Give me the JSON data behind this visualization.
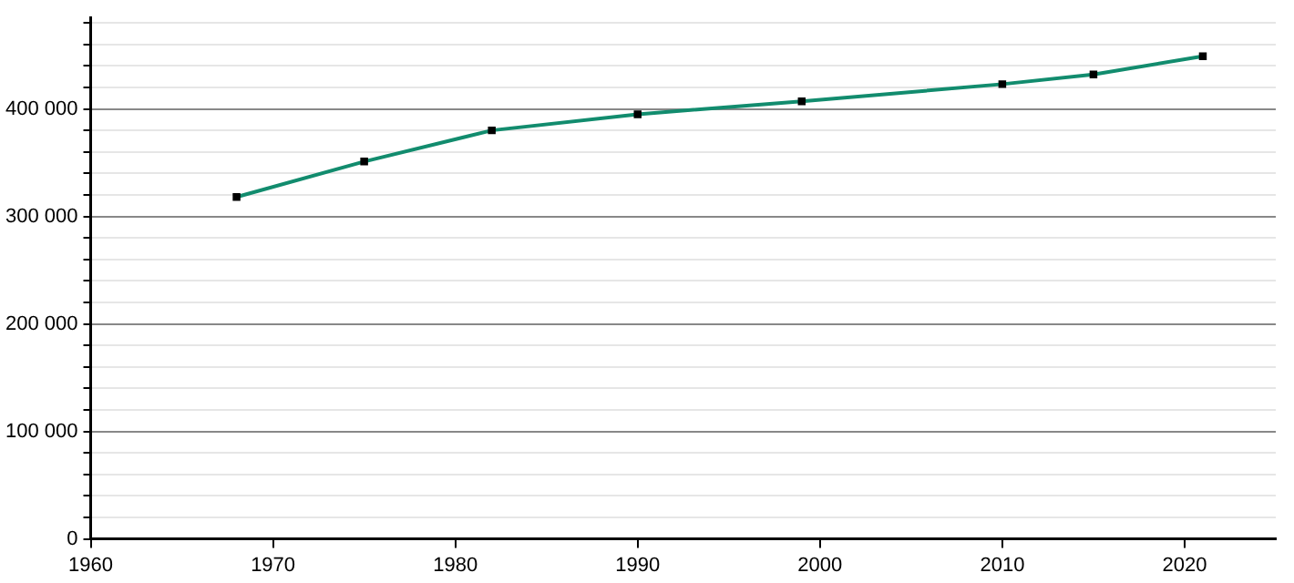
{
  "chart_data": {
    "type": "line",
    "x": [
      1968,
      1975,
      1982,
      1990,
      1999,
      2010,
      2015,
      2021
    ],
    "series": [
      {
        "color": "#128c6e",
        "values": [
          318000,
          351000,
          380000,
          395000,
          407000,
          423000,
          432000,
          449000
        ]
      }
    ],
    "xlim": [
      1960,
      2025
    ],
    "xticks": [
      1960,
      1970,
      1980,
      1990,
      2000,
      2010,
      2020
    ],
    "ylim": [
      0,
      485000
    ],
    "yticks": [
      0,
      {
        "value": 20000,
        "label": null
      },
      {
        "value": 40000,
        "label": null
      },
      {
        "value": 60000,
        "label": null
      },
      {
        "value": 80000,
        "label": null
      },
      {
        "value": 100000,
        "label": "100 000"
      },
      {
        "value": 120000,
        "label": null
      },
      {
        "value": 140000,
        "label": null
      },
      {
        "value": 160000,
        "label": null
      },
      {
        "value": 180000,
        "label": null
      },
      {
        "value": 200000,
        "label": "200 000"
      },
      {
        "value": 220000,
        "label": null
      },
      {
        "value": 240000,
        "label": null
      },
      {
        "value": 260000,
        "label": null
      },
      {
        "value": 280000,
        "label": null
      },
      {
        "value": 300000,
        "label": "300 000"
      },
      {
        "value": 320000,
        "label": null
      },
      {
        "value": 340000,
        "label": null
      },
      {
        "value": 360000,
        "label": null
      },
      {
        "value": 380000,
        "label": null
      },
      {
        "value": 400000,
        "label": "400 000"
      },
      {
        "value": 420000,
        "label": null
      },
      {
        "value": 440000,
        "label": null
      },
      {
        "value": 460000,
        "label": null
      },
      {
        "value": 480000,
        "label": null
      }
    ],
    "grid": "y",
    "legend": false,
    "marker": "square",
    "line_style": "solid"
  }
}
